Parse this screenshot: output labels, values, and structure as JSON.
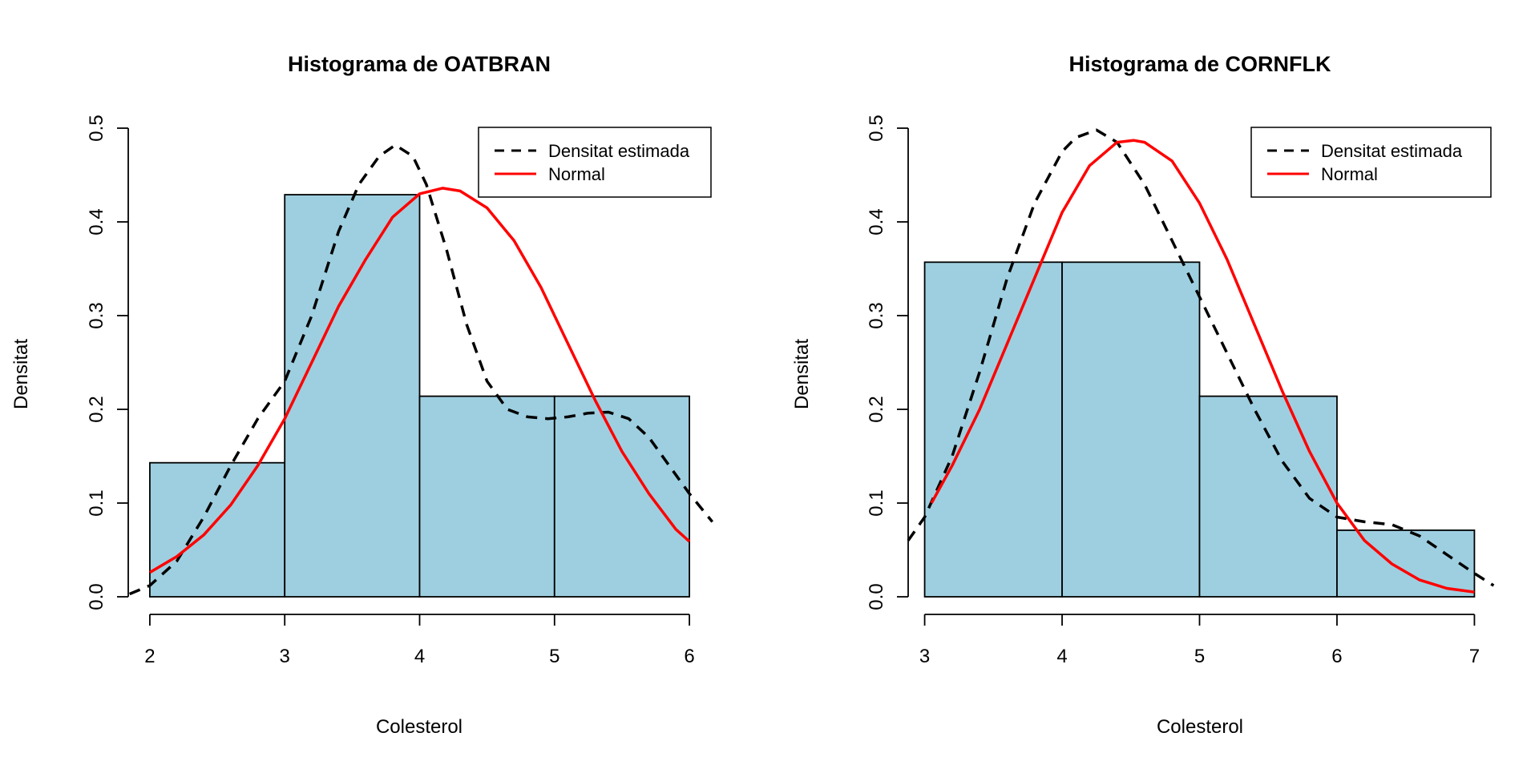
{
  "chart_data": [
    {
      "type": "bar",
      "title": "Histograma de OATBRAN",
      "xlabel": "Colesterol",
      "ylabel": "Densitat",
      "xlim": [
        1.84,
        6.16
      ],
      "ylim": [
        0,
        0.5
      ],
      "xticks": [
        "2",
        "3",
        "4",
        "5",
        "6"
      ],
      "yticks": [
        "0.0",
        "0.1",
        "0.2",
        "0.3",
        "0.4",
        "0.5"
      ],
      "bins": [
        {
          "from": 2,
          "to": 3,
          "density": 0.143
        },
        {
          "from": 3,
          "to": 4,
          "density": 0.429
        },
        {
          "from": 4,
          "to": 5,
          "density": 0.214
        },
        {
          "from": 5,
          "to": 6,
          "density": 0.214
        }
      ],
      "bar_color": "#9ECFE0",
      "legend": {
        "position": "top-right",
        "entries": [
          "Densitat estimada",
          "Normal"
        ]
      },
      "series": [
        {
          "name": "Densitat estimada",
          "style": "dashed",
          "color": "#000000",
          "x": [
            1.85,
            2.0,
            2.2,
            2.4,
            2.6,
            2.8,
            3.0,
            3.2,
            3.4,
            3.55,
            3.7,
            3.82,
            3.95,
            4.05,
            4.2,
            4.35,
            4.5,
            4.65,
            4.8,
            4.95,
            5.1,
            5.25,
            5.4,
            5.55,
            5.7,
            5.85,
            6.0,
            6.17
          ],
          "y": [
            0.003,
            0.012,
            0.038,
            0.085,
            0.14,
            0.19,
            0.23,
            0.3,
            0.39,
            0.44,
            0.47,
            0.482,
            0.47,
            0.44,
            0.37,
            0.29,
            0.23,
            0.2,
            0.192,
            0.19,
            0.192,
            0.196,
            0.197,
            0.19,
            0.17,
            0.14,
            0.11,
            0.08
          ]
        },
        {
          "name": "Normal",
          "style": "solid",
          "color": "#FF0000",
          "x": [
            2.0,
            2.2,
            2.4,
            2.6,
            2.8,
            3.0,
            3.2,
            3.4,
            3.6,
            3.8,
            4.0,
            4.17,
            4.3,
            4.5,
            4.7,
            4.9,
            5.1,
            5.3,
            5.5,
            5.7,
            5.9,
            6.0
          ],
          "y": [
            0.026,
            0.043,
            0.066,
            0.098,
            0.14,
            0.19,
            0.25,
            0.31,
            0.36,
            0.405,
            0.43,
            0.436,
            0.433,
            0.415,
            0.38,
            0.33,
            0.27,
            0.21,
            0.155,
            0.11,
            0.072,
            0.059
          ]
        }
      ]
    },
    {
      "type": "bar",
      "title": "Histograma de CORNFLK",
      "xlabel": "Colesterol",
      "ylabel": "Densitat",
      "xlim": [
        2.88,
        7.12
      ],
      "ylim": [
        0,
        0.5
      ],
      "xticks": [
        "3",
        "4",
        "5",
        "6",
        "7"
      ],
      "yticks": [
        "0.0",
        "0.1",
        "0.2",
        "0.3",
        "0.4",
        "0.5"
      ],
      "bins": [
        {
          "from": 3,
          "to": 4,
          "density": 0.357
        },
        {
          "from": 4,
          "to": 5,
          "density": 0.357
        },
        {
          "from": 5,
          "to": 6,
          "density": 0.214
        },
        {
          "from": 6,
          "to": 7,
          "density": 0.071
        }
      ],
      "bar_color": "#9ECFE0",
      "legend": {
        "position": "top-right",
        "entries": [
          "Densitat estimada",
          "Normal"
        ]
      },
      "series": [
        {
          "name": "Densitat estimada",
          "style": "dashed",
          "color": "#000000",
          "x": [
            2.88,
            3.0,
            3.2,
            3.4,
            3.6,
            3.8,
            4.0,
            4.1,
            4.25,
            4.4,
            4.6,
            4.8,
            5.0,
            5.2,
            5.4,
            5.6,
            5.8,
            6.0,
            6.2,
            6.4,
            6.6,
            6.8,
            7.0,
            7.14
          ],
          "y": [
            0.06,
            0.085,
            0.15,
            0.24,
            0.34,
            0.42,
            0.475,
            0.49,
            0.498,
            0.485,
            0.44,
            0.38,
            0.32,
            0.26,
            0.2,
            0.145,
            0.105,
            0.085,
            0.08,
            0.077,
            0.065,
            0.045,
            0.025,
            0.012
          ]
        },
        {
          "name": "Normal",
          "style": "solid",
          "color": "#FF0000",
          "x": [
            3.05,
            3.2,
            3.4,
            3.6,
            3.8,
            4.0,
            4.2,
            4.4,
            4.52,
            4.6,
            4.8,
            5.0,
            5.2,
            5.4,
            5.6,
            5.8,
            6.0,
            6.2,
            6.4,
            6.6,
            6.8,
            7.0
          ],
          "y": [
            0.1,
            0.14,
            0.2,
            0.27,
            0.34,
            0.41,
            0.46,
            0.485,
            0.487,
            0.485,
            0.465,
            0.42,
            0.36,
            0.29,
            0.22,
            0.155,
            0.1,
            0.06,
            0.035,
            0.018,
            0.009,
            0.005
          ]
        }
      ]
    }
  ]
}
